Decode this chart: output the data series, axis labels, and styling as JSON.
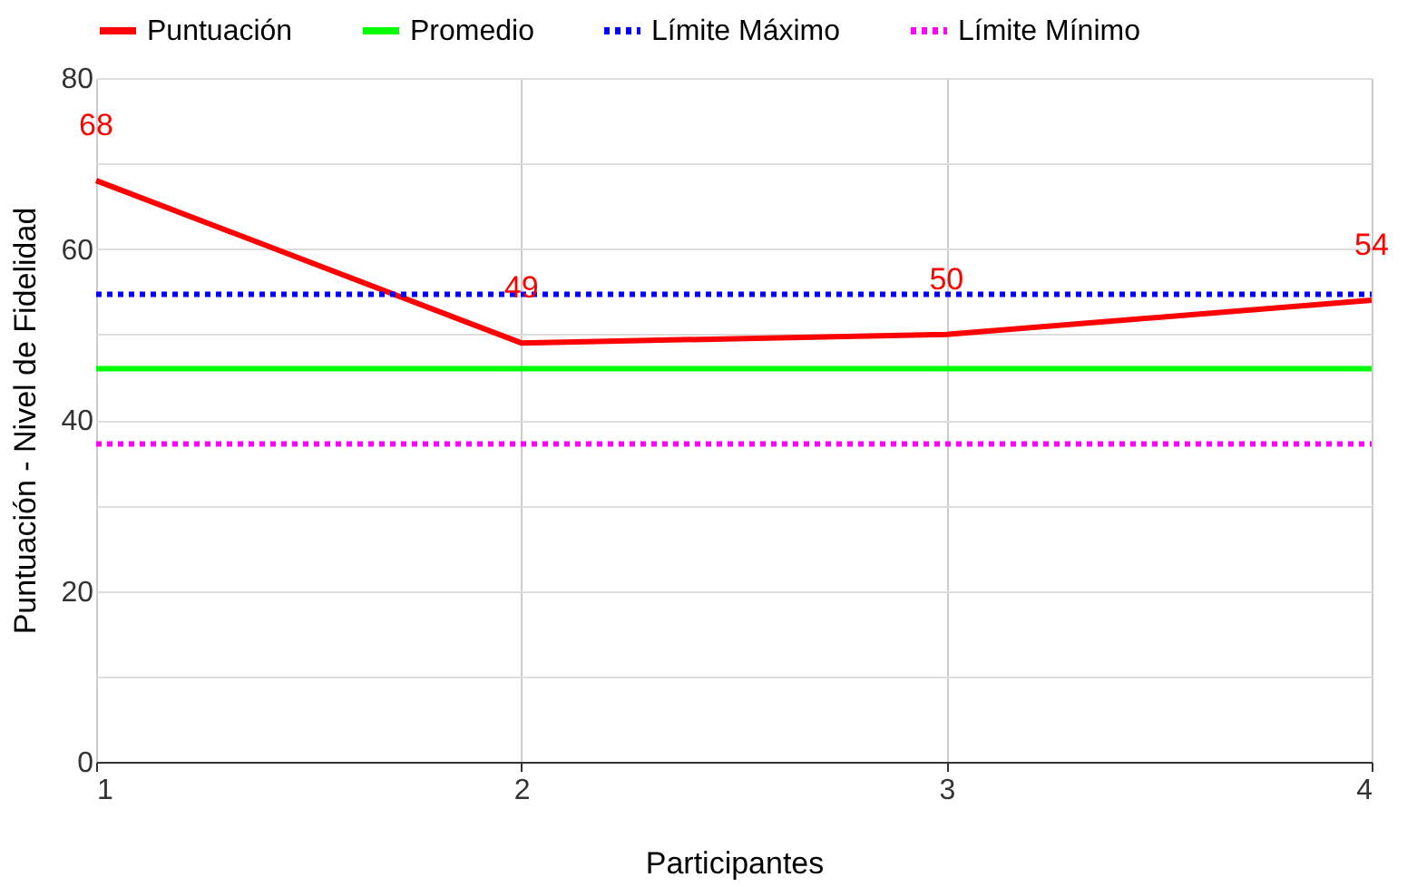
{
  "chart_data": {
    "type": "line",
    "xlabel": "Participantes",
    "ylabel": "Puntuación - Nivel de Fidelidad",
    "x": [
      1,
      2,
      3,
      4
    ],
    "xlim": [
      1,
      4
    ],
    "xticks": [
      1,
      2,
      3,
      4
    ],
    "ylim": [
      0,
      80
    ],
    "yticks": [
      0,
      {
        "value": 10,
        "label": null
      },
      20,
      {
        "value": 30,
        "label": null
      },
      40,
      {
        "value": 50,
        "label": null
      },
      60,
      {
        "value": 70,
        "label": null
      },
      80
    ],
    "grid": true,
    "legend": "top",
    "marker": "none",
    "series": [
      {
        "name": "Puntuación",
        "color": "#ff0000",
        "values": [
          68,
          49,
          50,
          54
        ],
        "value_labels": [
          "68",
          "49",
          "50",
          "54"
        ],
        "line_style": "solid"
      },
      {
        "name": "Promedio",
        "color": "#00ff00",
        "values": [
          46,
          46,
          46,
          46
        ],
        "line_style": "solid"
      },
      {
        "name": "Límite Máximo",
        "color": "#0000ff",
        "values": [
          54.7,
          54.7,
          54.7,
          54.7
        ],
        "line_style": "dotted"
      },
      {
        "name": "Límite Mínimo",
        "color": "#ff00ff",
        "values": [
          37.2,
          37.2,
          37.2,
          37.2
        ],
        "line_style": "dotted"
      }
    ]
  }
}
